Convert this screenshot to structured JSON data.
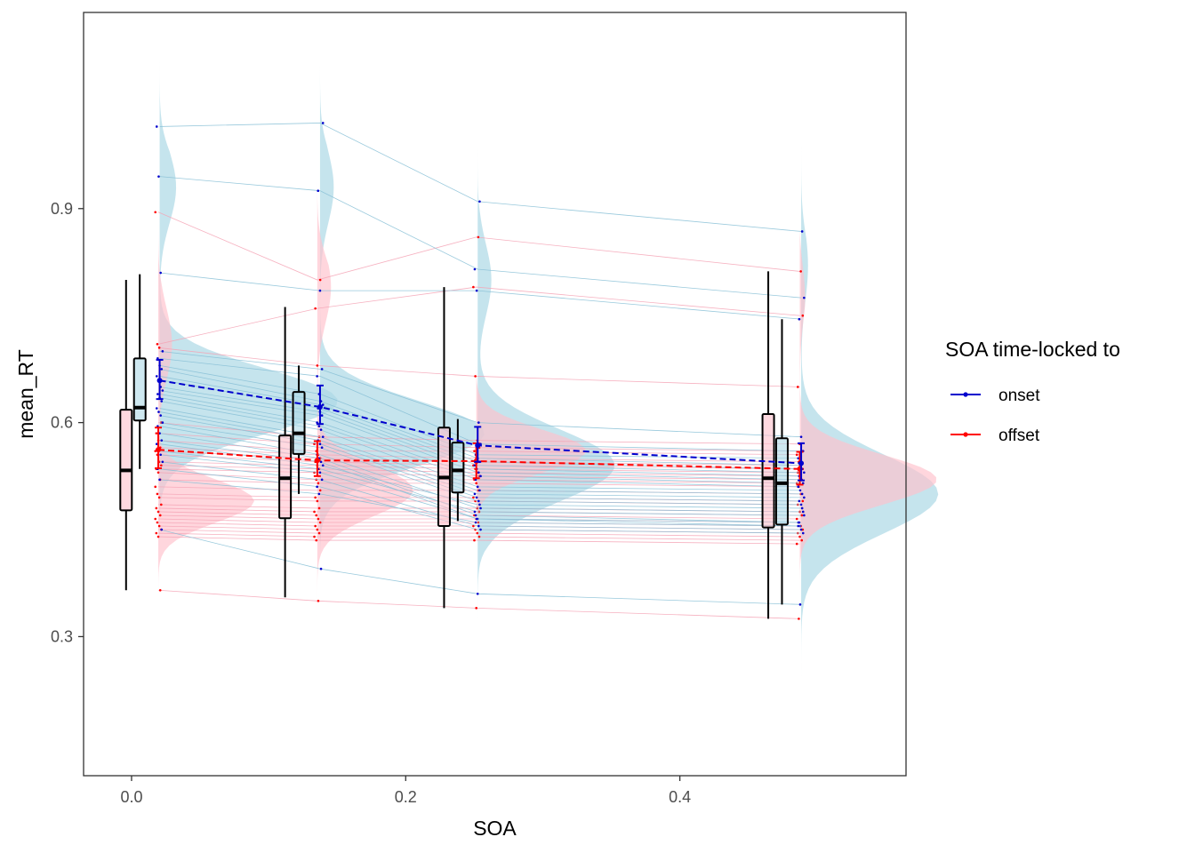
{
  "chart_data": {
    "type": "raincloud",
    "xlabel": "SOA",
    "ylabel": "mean_RT",
    "xlim": [
      -0.035,
      0.565
    ],
    "ylim": [
      0.105,
      1.175
    ],
    "x_ticks": [
      0.0,
      0.2,
      0.4
    ],
    "x_tick_labels": [
      "0.0",
      "0.2",
      "0.4"
    ],
    "y_ticks": [
      0.3,
      0.6,
      0.9
    ],
    "y_tick_labels": [
      "0.3",
      "0.6",
      "0.9"
    ],
    "grid": false,
    "legend": {
      "title": "SOA time-locked to",
      "position": "right",
      "entries": [
        {
          "label": "onset",
          "color": "#0000cd"
        },
        {
          "label": "offset",
          "color": "#ff0000"
        }
      ]
    },
    "colors": {
      "onset_line": "#0000cd",
      "offset_line": "#ff0000",
      "onset_fill": "#add8e6",
      "offset_fill": "#ffc0cb",
      "onset_subject_line": "#87bfd6",
      "offset_subject_line": "#f5a3b5",
      "box_stroke": "#000000"
    },
    "summary": {
      "onset": {
        "x": [
          0.0205,
          0.1375,
          0.2525,
          0.4885
        ],
        "mean": [
          0.659,
          0.622,
          0.568,
          0.543
        ],
        "ci_low": [
          0.633,
          0.598,
          0.545,
          0.519
        ],
        "ci_high": [
          0.688,
          0.652,
          0.594,
          0.571
        ]
      },
      "offset": {
        "x": [
          0.0195,
          0.1355,
          0.2515,
          0.4875
        ],
        "mean": [
          0.562,
          0.547,
          0.546,
          0.535
        ],
        "ci_low": [
          0.536,
          0.525,
          0.522,
          0.513
        ],
        "ci_high": [
          0.593,
          0.574,
          0.571,
          0.559
        ]
      }
    },
    "boxplots": [
      {
        "series": "offset",
        "x": -0.004,
        "min": 0.365,
        "q1": 0.477,
        "median": 0.533,
        "q3": 0.618,
        "max": 0.8
      },
      {
        "series": "onset",
        "x": 0.006,
        "min": 0.535,
        "q1": 0.603,
        "median": 0.621,
        "q3": 0.69,
        "max": 0.808
      },
      {
        "series": "offset",
        "x": 0.112,
        "min": 0.355,
        "q1": 0.466,
        "median": 0.522,
        "q3": 0.582,
        "max": 0.762
      },
      {
        "series": "onset",
        "x": 0.122,
        "min": 0.5,
        "q1": 0.556,
        "median": 0.585,
        "q3": 0.643,
        "max": 0.68
      },
      {
        "series": "offset",
        "x": 0.228,
        "min": 0.34,
        "q1": 0.455,
        "median": 0.523,
        "q3": 0.593,
        "max": 0.79
      },
      {
        "series": "onset",
        "x": 0.238,
        "min": 0.462,
        "q1": 0.502,
        "median": 0.533,
        "q3": 0.572,
        "max": 0.605
      },
      {
        "series": "offset",
        "x": 0.4645,
        "min": 0.325,
        "q1": 0.453,
        "median": 0.522,
        "q3": 0.612,
        "max": 0.812
      },
      {
        "series": "onset",
        "x": 0.4745,
        "min": 0.345,
        "q1": 0.457,
        "median": 0.515,
        "q3": 0.578,
        "max": 0.745
      }
    ],
    "densities": [
      {
        "series": "onset",
        "x": 0.0205,
        "ymin": 0.33,
        "ymax": 1.11,
        "peaks": [
          [
            0.63,
            0.13,
            0.045
          ],
          [
            0.93,
            0.012,
            0.05
          ]
        ]
      },
      {
        "series": "offset",
        "x": 0.0195,
        "ymin": 0.21,
        "ymax": 0.91,
        "peaks": [
          [
            0.49,
            0.07,
            0.03
          ],
          [
            0.71,
            0.01,
            0.05
          ]
        ]
      },
      {
        "series": "onset",
        "x": 0.1375,
        "ymin": 0.34,
        "ymax": 1.12,
        "peaks": [
          [
            0.585,
            0.12,
            0.045
          ],
          [
            0.93,
            0.01,
            0.05
          ]
        ]
      },
      {
        "series": "offset",
        "x": 0.1355,
        "ymin": 0.225,
        "ymax": 0.94,
        "peaks": [
          [
            0.505,
            0.07,
            0.035
          ],
          [
            0.79,
            0.01,
            0.05
          ]
        ]
      },
      {
        "series": "onset",
        "x": 0.2525,
        "ymin": 0.31,
        "ymax": 1.01,
        "peaks": [
          [
            0.54,
            0.1,
            0.05
          ],
          [
            0.8,
            0.01,
            0.05
          ]
        ]
      },
      {
        "series": "offset",
        "x": 0.2515,
        "ymin": 0.19,
        "ymax": 0.89,
        "peaks": [
          [
            0.56,
            0.08,
            0.03
          ]
        ]
      },
      {
        "series": "onset",
        "x": 0.4885,
        "ymin": 0.15,
        "ymax": 1.0,
        "peaks": [
          [
            0.5,
            0.1,
            0.055
          ],
          [
            0.82,
            0.005,
            0.05
          ]
        ]
      },
      {
        "series": "offset",
        "x": 0.4875,
        "ymin": 0.22,
        "ymax": 0.87,
        "peaks": [
          [
            0.52,
            0.1,
            0.035
          ],
          [
            0.8,
            0.005,
            0.05
          ]
        ]
      }
    ],
    "subjects": {
      "onset": [
        [
          1.015,
          1.02,
          0.91,
          0.868
        ],
        [
          0.945,
          0.925,
          0.815,
          0.775
        ],
        [
          0.81,
          0.785,
          0.785,
          0.745
        ],
        [
          0.7,
          0.675,
          0.6,
          0.58
        ],
        [
          0.69,
          0.665,
          0.57,
          0.56
        ],
        [
          0.68,
          0.64,
          0.555,
          0.55
        ],
        [
          0.675,
          0.63,
          0.55,
          0.54
        ],
        [
          0.665,
          0.625,
          0.545,
          0.535
        ],
        [
          0.66,
          0.62,
          0.54,
          0.53
        ],
        [
          0.65,
          0.615,
          0.535,
          0.525
        ],
        [
          0.645,
          0.61,
          0.53,
          0.52
        ],
        [
          0.64,
          0.6,
          0.525,
          0.515
        ],
        [
          0.635,
          0.595,
          0.52,
          0.51
        ],
        [
          0.63,
          0.59,
          0.51,
          0.505
        ],
        [
          0.62,
          0.58,
          0.505,
          0.5
        ],
        [
          0.615,
          0.575,
          0.5,
          0.495
        ],
        [
          0.61,
          0.57,
          0.495,
          0.49
        ],
        [
          0.6,
          0.565,
          0.49,
          0.485
        ],
        [
          0.595,
          0.555,
          0.48,
          0.475
        ],
        [
          0.585,
          0.55,
          0.47,
          0.46
        ],
        [
          0.575,
          0.545,
          0.465,
          0.455
        ],
        [
          0.57,
          0.54,
          0.485,
          0.48
        ],
        [
          0.56,
          0.535,
          0.475,
          0.47
        ],
        [
          0.555,
          0.53,
          0.465,
          0.46
        ],
        [
          0.545,
          0.52,
          0.455,
          0.45
        ],
        [
          0.535,
          0.51,
          0.45,
          0.445
        ],
        [
          0.52,
          0.5,
          0.46,
          0.455
        ],
        [
          0.45,
          0.395,
          0.36,
          0.345
        ]
      ],
      "offset": [
        [
          0.895,
          0.8,
          0.86,
          0.812
        ],
        [
          0.71,
          0.76,
          0.79,
          0.75
        ],
        [
          0.705,
          0.68,
          0.665,
          0.65
        ],
        [
          0.6,
          0.58,
          0.575,
          0.57
        ],
        [
          0.585,
          0.57,
          0.565,
          0.56
        ],
        [
          0.575,
          0.56,
          0.56,
          0.555
        ],
        [
          0.565,
          0.555,
          0.55,
          0.545
        ],
        [
          0.56,
          0.55,
          0.545,
          0.54
        ],
        [
          0.555,
          0.545,
          0.54,
          0.535
        ],
        [
          0.545,
          0.54,
          0.535,
          0.53
        ],
        [
          0.54,
          0.535,
          0.53,
          0.525
        ],
        [
          0.535,
          0.53,
          0.525,
          0.52
        ],
        [
          0.53,
          0.52,
          0.52,
          0.515
        ],
        [
          0.52,
          0.515,
          0.515,
          0.51
        ],
        [
          0.51,
          0.505,
          0.505,
          0.5
        ],
        [
          0.5,
          0.495,
          0.495,
          0.49
        ],
        [
          0.495,
          0.49,
          0.49,
          0.485
        ],
        [
          0.485,
          0.48,
          0.48,
          0.475
        ],
        [
          0.48,
          0.475,
          0.475,
          0.47
        ],
        [
          0.475,
          0.47,
          0.47,
          0.465
        ],
        [
          0.47,
          0.465,
          0.465,
          0.46
        ],
        [
          0.465,
          0.46,
          0.46,
          0.455
        ],
        [
          0.46,
          0.455,
          0.455,
          0.45
        ],
        [
          0.455,
          0.45,
          0.45,
          0.445
        ],
        [
          0.45,
          0.445,
          0.445,
          0.44
        ],
        [
          0.445,
          0.44,
          0.44,
          0.435
        ],
        [
          0.44,
          0.435,
          0.435,
          0.43
        ],
        [
          0.365,
          0.35,
          0.34,
          0.325
        ]
      ]
    }
  }
}
